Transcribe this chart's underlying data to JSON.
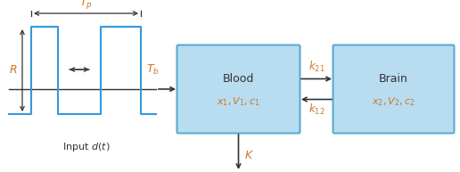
{
  "bg_color": "#ffffff",
  "box_fill": "#b8dcf0",
  "box_edge": "#5aabcf",
  "pulse_color": "#3399dd",
  "arrow_color": "#333333",
  "text_color": "#333333",
  "italic_color": "#cc7722",
  "fig_w": 5.16,
  "fig_h": 1.93,
  "dpi": 100,
  "blood_label1": "Blood",
  "blood_label2": "$x_1, V_1, c_1$",
  "brain_label1": "Brain",
  "brain_label2": "$x_2, V_2, c_2$",
  "k21_label": "$k_{21}$",
  "k12_label": "$k_{12}$",
  "K_label": "$K$",
  "Tp_label": "$T_p$",
  "Tb_label": "$T_b$",
  "R_label": "$R$",
  "input_label": "Input $d(t)$"
}
